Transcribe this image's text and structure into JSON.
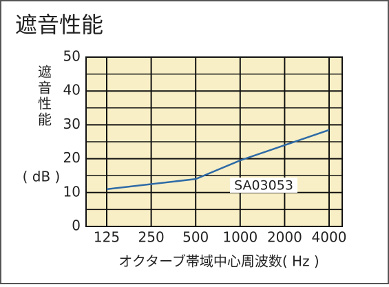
{
  "chart_data": {
    "type": "line",
    "title": "遮音性能",
    "y_label": "遮音性能",
    "y_unit": "( dB )",
    "x_label": "オクターブ帯域中心周波数( Hz )",
    "annotation": "SA03053",
    "categories": [
      "125",
      "250",
      "500",
      "1000",
      "2000",
      "4000"
    ],
    "values": [
      11,
      12.5,
      14,
      19.5,
      24,
      28.5
    ],
    "color": "#2e6aa6",
    "background": "#f8efc6",
    "ylim": [
      0,
      50
    ],
    "yticks": [
      0,
      10,
      20,
      30,
      40,
      50
    ],
    "y_minor_ticks": [
      5,
      15,
      25,
      35,
      45
    ],
    "grid": true
  }
}
